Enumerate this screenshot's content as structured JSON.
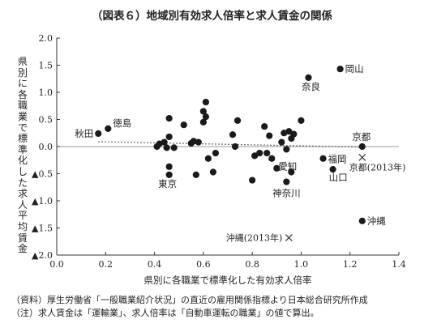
{
  "notes": [
    "（資料）厚生労働省「一般職業紹介状況」の直近の雇用関係指標より日本総合研究所作成",
    "（注）求人賃金は「運輸業」、求人倍率は「自動車運転の職業」の値で算出。"
  ],
  "chart_data": {
    "type": "scatter",
    "title": "（図表６）地域別有効求人倍率と求人賃金の関係",
    "xlabel": "県別に各職業で標準化した有効求人倍率",
    "ylabel": "県別に各職業で標準化した求人平均賃金",
    "xlim": [
      0.0,
      1.4
    ],
    "ylim": [
      -2.0,
      2.0
    ],
    "x_ticks": [
      "0.0",
      "0.2",
      "0.4",
      "0.6",
      "0.8",
      "1.0",
      "1.2",
      "1.4"
    ],
    "y_ticks": [
      "2.0",
      "1.5",
      "1.0",
      "0.5",
      "0.0",
      "▲0.5",
      "▲1.0",
      "▲1.5",
      "▲2.0"
    ],
    "y_tick_values": [
      2.0,
      1.5,
      1.0,
      0.5,
      0.0,
      -0.5,
      -1.0,
      -1.5,
      -2.0
    ],
    "grid": false,
    "trendline": {
      "x": [
        0.17,
        1.25
      ],
      "y": [
        0.09,
        -0.01
      ]
    },
    "points": [
      {
        "x": 0.17,
        "y": 0.24,
        "label": "秋田"
      },
      {
        "x": 0.21,
        "y": 0.33,
        "label": "徳島"
      },
      {
        "x": 0.41,
        "y": 0.0
      },
      {
        "x": 0.42,
        "y": 0.05
      },
      {
        "x": 0.44,
        "y": 0.08
      },
      {
        "x": 0.45,
        "y": -0.02
      },
      {
        "x": 0.46,
        "y": 0.52
      },
      {
        "x": 0.46,
        "y": 0.18
      },
      {
        "x": 0.46,
        "y": -0.37
      },
      {
        "x": 0.46,
        "y": -0.52,
        "label": "東京"
      },
      {
        "x": 0.48,
        "y": -0.02
      },
      {
        "x": 0.52,
        "y": 0.4
      },
      {
        "x": 0.55,
        "y": 0.06
      },
      {
        "x": 0.56,
        "y": 0.1
      },
      {
        "x": 0.57,
        "y": -0.52
      },
      {
        "x": 0.58,
        "y": 0.08
      },
      {
        "x": 0.6,
        "y": 0.65
      },
      {
        "x": 0.6,
        "y": 0.45
      },
      {
        "x": 0.61,
        "y": 0.82
      },
      {
        "x": 0.61,
        "y": 0.55
      },
      {
        "x": 0.62,
        "y": -0.22
      },
      {
        "x": 0.64,
        "y": -0.47
      },
      {
        "x": 0.65,
        "y": -0.12
      },
      {
        "x": 0.72,
        "y": 0.22
      },
      {
        "x": 0.73,
        "y": 0.0
      },
      {
        "x": 0.74,
        "y": 0.48
      },
      {
        "x": 0.8,
        "y": -0.62
      },
      {
        "x": 0.81,
        "y": -0.17
      },
      {
        "x": 0.83,
        "y": -0.12
      },
      {
        "x": 0.85,
        "y": 0.37
      },
      {
        "x": 0.86,
        "y": -0.12
      },
      {
        "x": 0.87,
        "y": 0.2
      },
      {
        "x": 0.88,
        "y": -0.22,
        "label": "愛知"
      },
      {
        "x": 0.9,
        "y": -0.4
      },
      {
        "x": 0.92,
        "y": 0.08
      },
      {
        "x": 0.93,
        "y": 0.25
      },
      {
        "x": 0.94,
        "y": -0.05
      },
      {
        "x": 0.94,
        "y": -0.65,
        "label": "神奈川"
      },
      {
        "x": 0.95,
        "y": 0.28
      },
      {
        "x": 0.96,
        "y": 0.15
      },
      {
        "x": 0.96,
        "y": -0.47
      },
      {
        "x": 0.97,
        "y": 0.23
      },
      {
        "x": 1.0,
        "y": 0.48
      },
      {
        "x": 1.03,
        "y": 1.27,
        "label": "奈良"
      },
      {
        "x": 1.09,
        "y": -0.22,
        "label": "福岡"
      },
      {
        "x": 1.13,
        "y": -0.42,
        "label": "山口"
      },
      {
        "x": 1.16,
        "y": 1.43,
        "label": "岡山"
      },
      {
        "x": 1.25,
        "y": 0.0,
        "label": "京都"
      },
      {
        "x": 1.25,
        "y": -1.37,
        "label": "沖縄"
      }
    ],
    "markers_2013": [
      {
        "x": 1.25,
        "y": -0.2,
        "label": "京都(2013年)"
      },
      {
        "x": 0.95,
        "y": -1.68,
        "label": "沖縄(2013年)"
      }
    ]
  }
}
